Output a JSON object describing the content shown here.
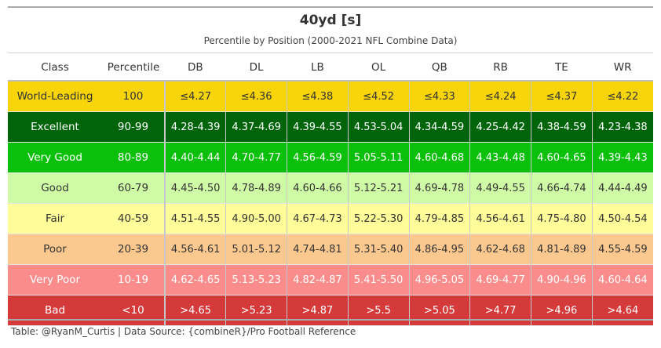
{
  "title": "40yd [s]",
  "subtitle": "Percentile by Position (2000-2021 NFL Combine Data)",
  "columns": [
    "Class",
    "Percentile",
    "DB",
    "DL",
    "LB",
    "OL",
    "QB",
    "RB",
    "TE",
    "WR"
  ],
  "rows": [
    {
      "cls": "World-Leading",
      "pct": "100",
      "values": [
        "≤4.27",
        "≤4.36",
        "≤4.38",
        "≤4.52",
        "≤4.33",
        "≤4.24",
        "≤4.37",
        "≤4.22"
      ],
      "bg": "#f7d50a",
      "fg": "#333333"
    },
    {
      "cls": "Excellent",
      "pct": "90-99",
      "values": [
        "4.28-4.39",
        "4.37-4.69",
        "4.39-4.55",
        "4.53-5.04",
        "4.34-4.59",
        "4.25-4.42",
        "4.38-4.59",
        "4.23-4.38"
      ],
      "bg": "#00640a",
      "fg": "#ffffff"
    },
    {
      "cls": "Very Good",
      "pct": "80-89",
      "values": [
        "4.40-4.44",
        "4.70-4.77",
        "4.56-4.59",
        "5.05-5.11",
        "4.60-4.68",
        "4.43-4.48",
        "4.60-4.65",
        "4.39-4.43"
      ],
      "bg": "#0ac00a",
      "fg": "#ffffff"
    },
    {
      "cls": "Good",
      "pct": "60-79",
      "values": [
        "4.45-4.50",
        "4.78-4.89",
        "4.60-4.66",
        "5.12-5.21",
        "4.69-4.78",
        "4.49-4.55",
        "4.66-4.74",
        "4.44-4.49"
      ],
      "bg": "#d0fba6",
      "fg": "#333333"
    },
    {
      "cls": "Fair",
      "pct": "40-59",
      "values": [
        "4.51-4.55",
        "4.90-5.00",
        "4.67-4.73",
        "5.22-5.30",
        "4.79-4.85",
        "4.56-4.61",
        "4.75-4.80",
        "4.50-4.54"
      ],
      "bg": "#fefd9a",
      "fg": "#333333"
    },
    {
      "cls": "Poor",
      "pct": "20-39",
      "values": [
        "4.56-4.61",
        "5.01-5.12",
        "4.74-4.81",
        "5.31-5.40",
        "4.86-4.95",
        "4.62-4.68",
        "4.81-4.89",
        "4.55-4.59"
      ],
      "bg": "#fbc98f",
      "fg": "#333333"
    },
    {
      "cls": "Very Poor",
      "pct": "10-19",
      "values": [
        "4.62-4.65",
        "5.13-5.23",
        "4.82-4.87",
        "5.41-5.50",
        "4.96-5.05",
        "4.69-4.77",
        "4.90-4.96",
        "4.60-4.64"
      ],
      "bg": "#fa8c8c",
      "fg": "#ffffff"
    },
    {
      "cls": "Bad",
      "pct": "<10",
      "values": [
        ">4.65",
        ">5.23",
        ">4.87",
        ">5.5",
        ">5.05",
        ">4.77",
        ">4.96",
        ">4.64"
      ],
      "bg": "#d53a3a",
      "fg": "#ffffff"
    }
  ],
  "footer": "Table: @RyanM_Curtis | Data Source: {combineR}/Pro Football Reference"
}
